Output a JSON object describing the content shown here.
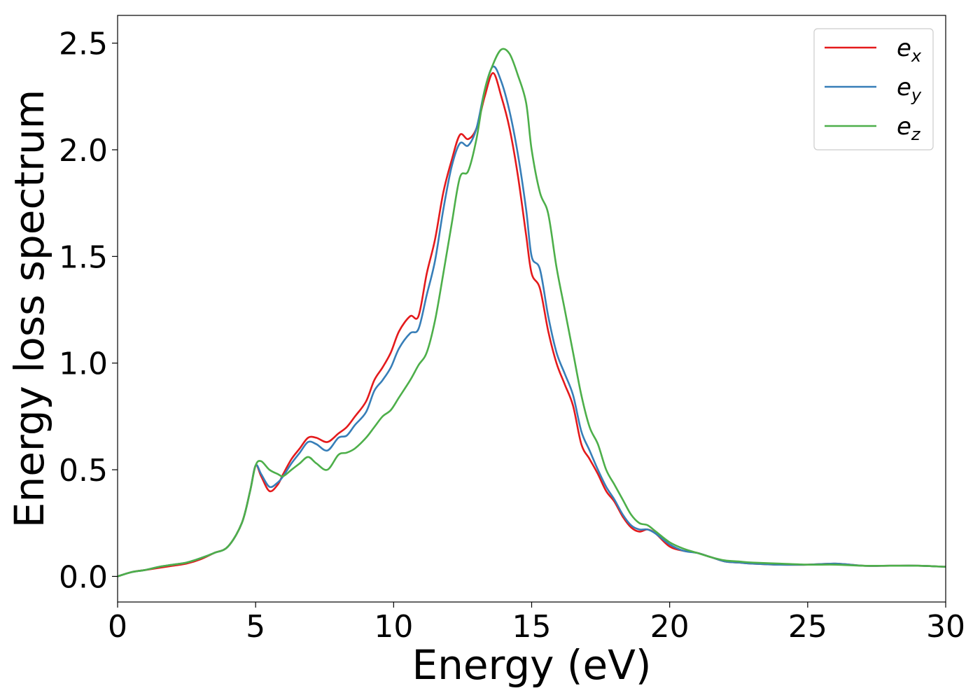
{
  "chart_data": {
    "type": "line",
    "title": "",
    "xlabel": "Energy (eV)",
    "ylabel": "Energy loss spectrum",
    "xlim": [
      0,
      30
    ],
    "ylim": [
      -0.12,
      2.63
    ],
    "xticks": [
      0,
      5,
      10,
      15,
      20,
      25,
      30
    ],
    "xtick_labels": [
      "0",
      "5",
      "10",
      "15",
      "20",
      "25",
      "30"
    ],
    "yticks": [
      0.0,
      0.5,
      1.0,
      1.5,
      2.0,
      2.5
    ],
    "ytick_labels": [
      "0.0",
      "0.5",
      "1.0",
      "1.5",
      "2.0",
      "2.5"
    ],
    "grid": false,
    "legend_position": "top-right",
    "series": [
      {
        "name": "e_x",
        "label_base": "e",
        "label_sub": "x",
        "color": "#e41a1c",
        "x": [
          0,
          0.5,
          1,
          1.5,
          2,
          2.5,
          3,
          3.5,
          4,
          4.5,
          4.8,
          5,
          5.2,
          5.5,
          5.8,
          6,
          6.3,
          6.6,
          6.9,
          7.2,
          7.6,
          8,
          8.3,
          8.6,
          9,
          9.3,
          9.6,
          9.9,
          10.2,
          10.6,
          10.9,
          11.2,
          11.5,
          11.8,
          12.1,
          12.4,
          12.7,
          13,
          13.3,
          13.6,
          13.9,
          14.2,
          14.5,
          14.8,
          15,
          15.3,
          15.6,
          15.9,
          16.2,
          16.5,
          16.8,
          17.1,
          17.4,
          17.7,
          18,
          18.3,
          18.6,
          18.9,
          19.2,
          19.5,
          20,
          20.5,
          21,
          21.5,
          22,
          22.5,
          23,
          24,
          25,
          26,
          27,
          28,
          29,
          30
        ],
        "y": [
          0.0,
          0.02,
          0.03,
          0.04,
          0.05,
          0.06,
          0.08,
          0.11,
          0.14,
          0.25,
          0.4,
          0.52,
          0.47,
          0.4,
          0.43,
          0.48,
          0.55,
          0.6,
          0.65,
          0.65,
          0.63,
          0.67,
          0.7,
          0.75,
          0.82,
          0.92,
          0.98,
          1.05,
          1.15,
          1.22,
          1.22,
          1.42,
          1.58,
          1.8,
          1.95,
          2.07,
          2.05,
          2.1,
          2.25,
          2.36,
          2.25,
          2.1,
          1.88,
          1.6,
          1.42,
          1.35,
          1.15,
          1.0,
          0.9,
          0.8,
          0.62,
          0.55,
          0.48,
          0.4,
          0.35,
          0.28,
          0.23,
          0.21,
          0.22,
          0.2,
          0.14,
          0.12,
          0.11,
          0.09,
          0.07,
          0.065,
          0.06,
          0.055,
          0.055,
          0.06,
          0.05,
          0.05,
          0.05,
          0.045
        ]
      },
      {
        "name": "e_y",
        "label_base": "e",
        "label_sub": "y",
        "color": "#377eb8",
        "x": [
          0,
          0.5,
          1,
          1.5,
          2,
          2.5,
          3,
          3.5,
          4,
          4.5,
          4.8,
          5,
          5.2,
          5.5,
          5.8,
          6,
          6.3,
          6.6,
          6.9,
          7.2,
          7.6,
          8,
          8.3,
          8.6,
          9,
          9.3,
          9.6,
          9.9,
          10.2,
          10.6,
          10.9,
          11.2,
          11.5,
          11.8,
          12.1,
          12.4,
          12.7,
          13,
          13.3,
          13.6,
          13.9,
          14.2,
          14.5,
          14.8,
          15,
          15.3,
          15.6,
          15.9,
          16.2,
          16.5,
          16.8,
          17.1,
          17.4,
          17.7,
          18,
          18.3,
          18.6,
          18.9,
          19.2,
          19.5,
          20,
          20.5,
          21,
          21.5,
          22,
          22.5,
          23,
          24,
          25,
          26,
          27,
          28,
          29,
          30
        ],
        "y": [
          0.0,
          0.02,
          0.03,
          0.045,
          0.055,
          0.065,
          0.085,
          0.11,
          0.14,
          0.25,
          0.4,
          0.52,
          0.48,
          0.42,
          0.44,
          0.47,
          0.53,
          0.58,
          0.63,
          0.62,
          0.59,
          0.65,
          0.66,
          0.71,
          0.77,
          0.87,
          0.92,
          0.98,
          1.07,
          1.14,
          1.16,
          1.32,
          1.48,
          1.72,
          1.92,
          2.03,
          2.02,
          2.1,
          2.28,
          2.39,
          2.32,
          2.18,
          1.98,
          1.72,
          1.5,
          1.44,
          1.22,
          1.05,
          0.95,
          0.85,
          0.68,
          0.59,
          0.5,
          0.42,
          0.36,
          0.29,
          0.24,
          0.22,
          0.22,
          0.2,
          0.15,
          0.12,
          0.11,
          0.09,
          0.07,
          0.065,
          0.06,
          0.055,
          0.055,
          0.06,
          0.05,
          0.05,
          0.05,
          0.045
        ]
      },
      {
        "name": "e_z",
        "label_base": "e",
        "label_sub": "z",
        "color": "#4daf4a",
        "x": [
          0,
          0.5,
          1,
          1.5,
          2,
          2.5,
          3,
          3.5,
          4,
          4.5,
          4.8,
          5,
          5.2,
          5.5,
          5.8,
          6,
          6.3,
          6.6,
          6.9,
          7.2,
          7.6,
          8,
          8.3,
          8.6,
          9,
          9.3,
          9.6,
          9.9,
          10.2,
          10.6,
          10.9,
          11.2,
          11.5,
          11.8,
          12.1,
          12.4,
          12.7,
          13,
          13.3,
          13.6,
          13.9,
          14.2,
          14.5,
          14.8,
          15,
          15.3,
          15.6,
          15.9,
          16.2,
          16.5,
          16.8,
          17.1,
          17.4,
          17.7,
          18,
          18.3,
          18.6,
          18.9,
          19.2,
          19.5,
          20,
          20.5,
          21,
          21.5,
          22,
          22.5,
          23,
          24,
          25,
          26,
          27,
          28,
          29,
          30
        ],
        "y": [
          0.0,
          0.02,
          0.03,
          0.045,
          0.055,
          0.065,
          0.085,
          0.11,
          0.14,
          0.25,
          0.4,
          0.52,
          0.54,
          0.5,
          0.48,
          0.47,
          0.5,
          0.53,
          0.56,
          0.53,
          0.5,
          0.57,
          0.58,
          0.6,
          0.65,
          0.7,
          0.75,
          0.78,
          0.84,
          0.92,
          0.99,
          1.05,
          1.2,
          1.42,
          1.65,
          1.87,
          1.9,
          2.05,
          2.28,
          2.4,
          2.47,
          2.45,
          2.35,
          2.22,
          2.0,
          1.8,
          1.7,
          1.45,
          1.25,
          1.05,
          0.85,
          0.7,
          0.62,
          0.5,
          0.43,
          0.36,
          0.29,
          0.25,
          0.24,
          0.21,
          0.16,
          0.13,
          0.11,
          0.09,
          0.075,
          0.07,
          0.065,
          0.06,
          0.055,
          0.055,
          0.05,
          0.05,
          0.05,
          0.045
        ]
      }
    ]
  }
}
